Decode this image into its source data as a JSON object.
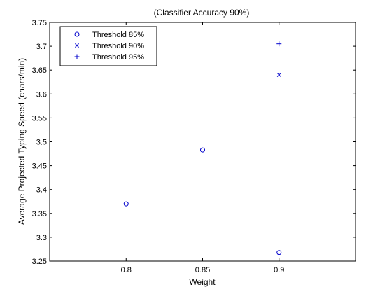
{
  "chart_data": {
    "type": "scatter",
    "title": "(Classifier Accuracy 90%)",
    "xlabel": "Weight",
    "ylabel": "Average Projected Typing Speed (chars/min)",
    "xlim": [
      0.75,
      0.95
    ],
    "ylim": [
      3.25,
      3.75
    ],
    "xticks": [
      "0.8",
      "0.85",
      "0.9"
    ],
    "yticks": [
      "3.25",
      "3.3",
      "3.35",
      "3.4",
      "3.45",
      "3.5",
      "3.55",
      "3.6",
      "3.65",
      "3.7",
      "3.75"
    ],
    "grid": false,
    "legend_position": "top-left",
    "marker_color": "#0000cc",
    "series": [
      {
        "name": "Threshold 85%",
        "marker": "circle",
        "x": [
          0.8,
          0.85,
          0.9
        ],
        "y": [
          3.37,
          3.483,
          3.268
        ]
      },
      {
        "name": "Threshold 90%",
        "marker": "x",
        "x": [
          0.9
        ],
        "y": [
          3.64
        ]
      },
      {
        "name": "Threshold 95%",
        "marker": "plus",
        "x": [
          0.9
        ],
        "y": [
          3.705
        ]
      }
    ]
  }
}
